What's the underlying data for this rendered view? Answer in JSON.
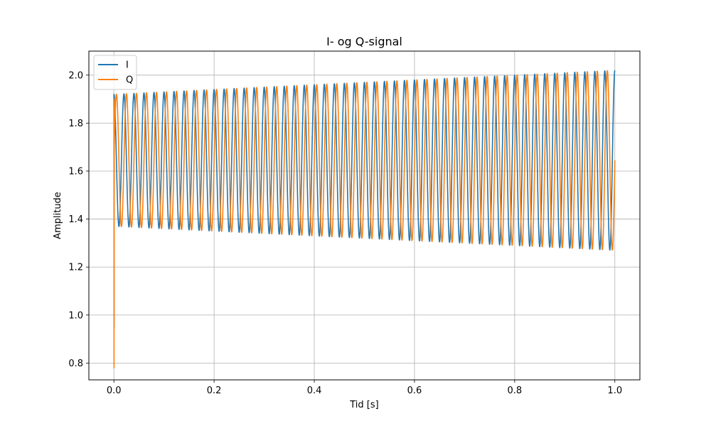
{
  "chart_data": {
    "type": "line",
    "title": "I- og Q-signal",
    "xlabel": "Tid [s]",
    "ylabel": "Amplitude",
    "xlim": [
      -0.05,
      1.05
    ],
    "ylim": [
      0.73,
      2.1
    ],
    "xticks": [
      0.0,
      0.2,
      0.4,
      0.6,
      0.8,
      1.0
    ],
    "xtick_labels": [
      "0.0",
      "0.2",
      "0.4",
      "0.6",
      "0.8",
      "1.0"
    ],
    "yticks": [
      0.8,
      1.0,
      1.2,
      1.4,
      1.6,
      1.8,
      2.0
    ],
    "ytick_labels": [
      "0.8",
      "1.0",
      "1.2",
      "1.4",
      "1.6",
      "1.8",
      "2.0"
    ],
    "grid": true,
    "legend_position": "top-left",
    "signal": {
      "frequency_hz": 50,
      "initial_minimum": 0.78,
      "max_start": 1.92,
      "max_end": 2.02,
      "min_start": 1.37,
      "min_end": 1.27,
      "q_phase_lag_cycles": 0.25
    },
    "series": [
      {
        "name": "I",
        "color": "#1f77b4"
      },
      {
        "name": "Q",
        "color": "#ff7f0e"
      }
    ]
  }
}
